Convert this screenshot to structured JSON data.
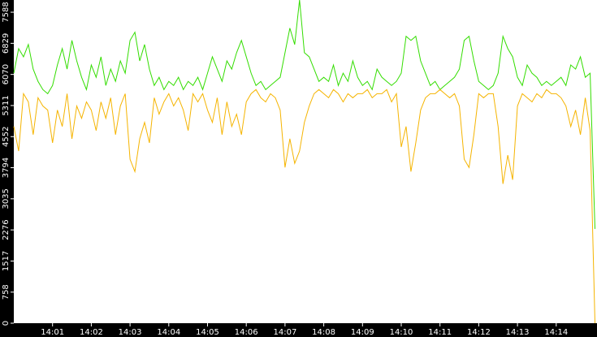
{
  "chart_data": {
    "type": "line",
    "categories": [
      null,
      null,
      null,
      null,
      null,
      null,
      null,
      null,
      "14:01",
      null,
      null,
      null,
      null,
      null,
      null,
      null,
      "14:02",
      null,
      null,
      null,
      null,
      null,
      null,
      null,
      "14:03",
      null,
      null,
      null,
      null,
      null,
      null,
      null,
      "14:04",
      null,
      null,
      null,
      null,
      null,
      null,
      null,
      "14:05",
      null,
      null,
      null,
      null,
      null,
      null,
      null,
      "14:06",
      null,
      null,
      null,
      null,
      null,
      null,
      null,
      "14:07",
      null,
      null,
      null,
      null,
      null,
      null,
      null,
      "14:08",
      null,
      null,
      null,
      null,
      null,
      null,
      null,
      "14:09",
      null,
      null,
      null,
      null,
      null,
      null,
      null,
      "14:10",
      null,
      null,
      null,
      null,
      null,
      null,
      null,
      "14:11",
      null,
      null,
      null,
      null,
      null,
      null,
      null,
      "14:12",
      null,
      null,
      null,
      null,
      null,
      null,
      null,
      "14:13",
      null,
      null,
      null,
      null,
      null,
      null,
      null,
      "14:14",
      null,
      null,
      null,
      null,
      null,
      null,
      null,
      null
    ],
    "series": [
      {
        "color": "#33dd00",
        "values": [
          6100,
          6700,
          6500,
          6800,
          6200,
          5900,
          5700,
          5600,
          5800,
          6300,
          6700,
          6200,
          6900,
          6400,
          6000,
          5700,
          6300,
          6000,
          6500,
          5800,
          6200,
          5900,
          6400,
          6100,
          6900,
          7100,
          6400,
          6800,
          6200,
          5800,
          6000,
          5700,
          5900,
          5800,
          6000,
          5700,
          5900,
          5800,
          6000,
          5700,
          6100,
          6500,
          6200,
          5900,
          6400,
          6200,
          6600,
          6900,
          6500,
          6100,
          5800,
          5900,
          5700,
          5800,
          5900,
          6000,
          6600,
          7200,
          6800,
          7886,
          6600,
          6500,
          6200,
          5900,
          6000,
          5900,
          6300,
          5800,
          6100,
          5900,
          6400,
          6000,
          5800,
          5900,
          5700,
          6200,
          6000,
          5900,
          5800,
          5900,
          6100,
          7000,
          6900,
          7000,
          6400,
          6100,
          5800,
          5900,
          5700,
          5800,
          5900,
          6000,
          6200,
          6900,
          7000,
          6400,
          5900,
          5800,
          5700,
          5800,
          6100,
          7000,
          6700,
          6500,
          6000,
          5800,
          6300,
          6100,
          6000,
          5800,
          5900,
          5800,
          5900,
          6000,
          5800,
          6300,
          6200,
          6500,
          6000,
          6100,
          2300
        ]
      },
      {
        "color": "#f5b400",
        "values": [
          4800,
          4200,
          5600,
          5400,
          4600,
          5500,
          5300,
          5200,
          4400,
          5200,
          4800,
          5600,
          4500,
          5300,
          5000,
          5400,
          5200,
          4700,
          5400,
          5000,
          5500,
          4600,
          5300,
          5600,
          4000,
          3700,
          4500,
          4900,
          4400,
          5500,
          5100,
          5400,
          5600,
          5300,
          5500,
          5200,
          4700,
          5600,
          5400,
          5600,
          5200,
          4900,
          5500,
          4600,
          5400,
          4800,
          5100,
          4600,
          5400,
          5600,
          5700,
          5500,
          5400,
          5600,
          5500,
          5200,
          3800,
          4500,
          3900,
          4200,
          4900,
          5300,
          5600,
          5700,
          5600,
          5500,
          5700,
          5600,
          5400,
          5600,
          5500,
          5600,
          5600,
          5700,
          5500,
          5600,
          5600,
          5700,
          5400,
          5600,
          4300,
          4800,
          3700,
          4400,
          5200,
          5500,
          5600,
          5600,
          5700,
          5600,
          5500,
          5600,
          5300,
          4000,
          3800,
          4600,
          5600,
          5500,
          5600,
          5600,
          4800,
          3400,
          4100,
          3500,
          5300,
          5600,
          5500,
          5400,
          5600,
          5500,
          5700,
          5600,
          5600,
          5500,
          5300,
          4800,
          5200,
          4600,
          5500,
          4700,
          0
        ]
      }
    ],
    "ylim": [
      0,
      7886
    ],
    "yticks": [
      0,
      758,
      1517,
      2276,
      3035,
      3794,
      4552,
      5311,
      6070,
      6829,
      7588
    ]
  }
}
